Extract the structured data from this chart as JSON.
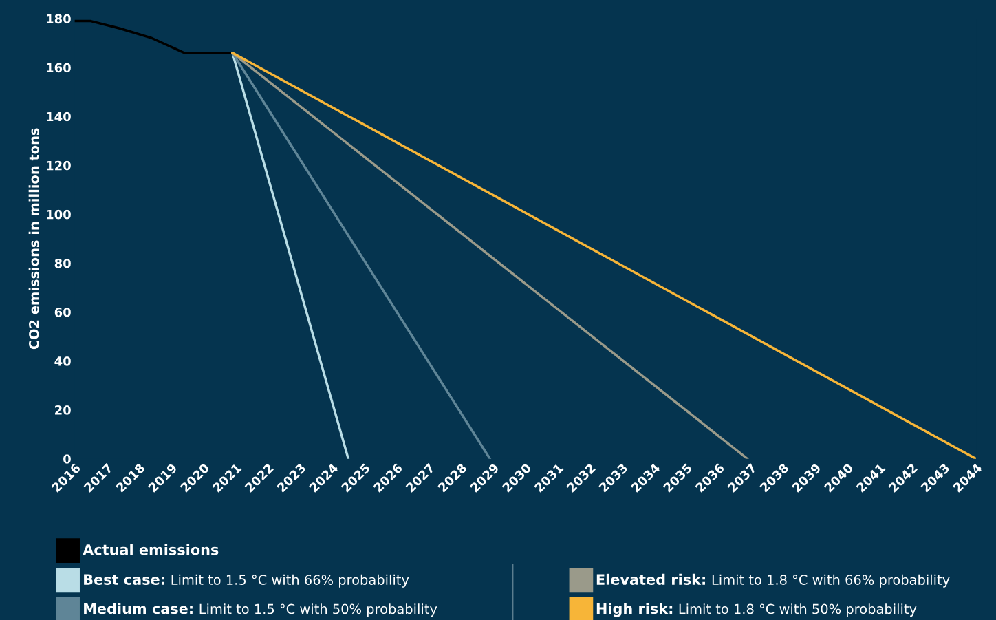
{
  "chart_data": {
    "type": "line",
    "ylabel": "CO2 emissions in million tons",
    "xlim": [
      2016,
      2044
    ],
    "xticks": [
      2016,
      2017,
      2018,
      2019,
      2020,
      2021,
      2022,
      2023,
      2024,
      2025,
      2026,
      2027,
      2028,
      2029,
      2030,
      2031,
      2032,
      2033,
      2034,
      2035,
      2036,
      2037,
      2038,
      2039,
      2040,
      2041,
      2042,
      2043,
      2044
    ],
    "ylim": [
      0,
      180
    ],
    "yticks": [
      0,
      20,
      40,
      60,
      80,
      100,
      120,
      140,
      160,
      180
    ],
    "grid": false,
    "legend": "bottom",
    "marker": "none",
    "line_style": "solid",
    "series": [
      {
        "name": "Actual emissions",
        "color": "#000000",
        "x": [
          2016,
          2016.5,
          2017.4,
          2018.4,
          2019.4,
          2020.9
        ],
        "values": [
          179,
          179,
          176,
          172,
          166,
          166
        ]
      },
      {
        "name": "Best case: Limit to 1.5 °C with 66% probability",
        "color": "#b9dde6",
        "x": [
          2020.9,
          2024.5
        ],
        "values": [
          166,
          0
        ]
      },
      {
        "name": "Medium case: Limit to 1.5 °C with 50% probability",
        "color": "#5f8597",
        "x": [
          2020.9,
          2028.9
        ],
        "values": [
          166,
          0
        ]
      },
      {
        "name": "Elevated risk: Limit to 1.8 °C with 66% probability",
        "color": "#9a9a8a",
        "x": [
          2020.9,
          2036.9
        ],
        "values": [
          166,
          0
        ]
      },
      {
        "name": "High risk: Limit to 1.8 °C with 50% probability",
        "color": "#f7b538",
        "x": [
          2020.9,
          2044
        ],
        "values": [
          166,
          0
        ]
      }
    ]
  }
}
